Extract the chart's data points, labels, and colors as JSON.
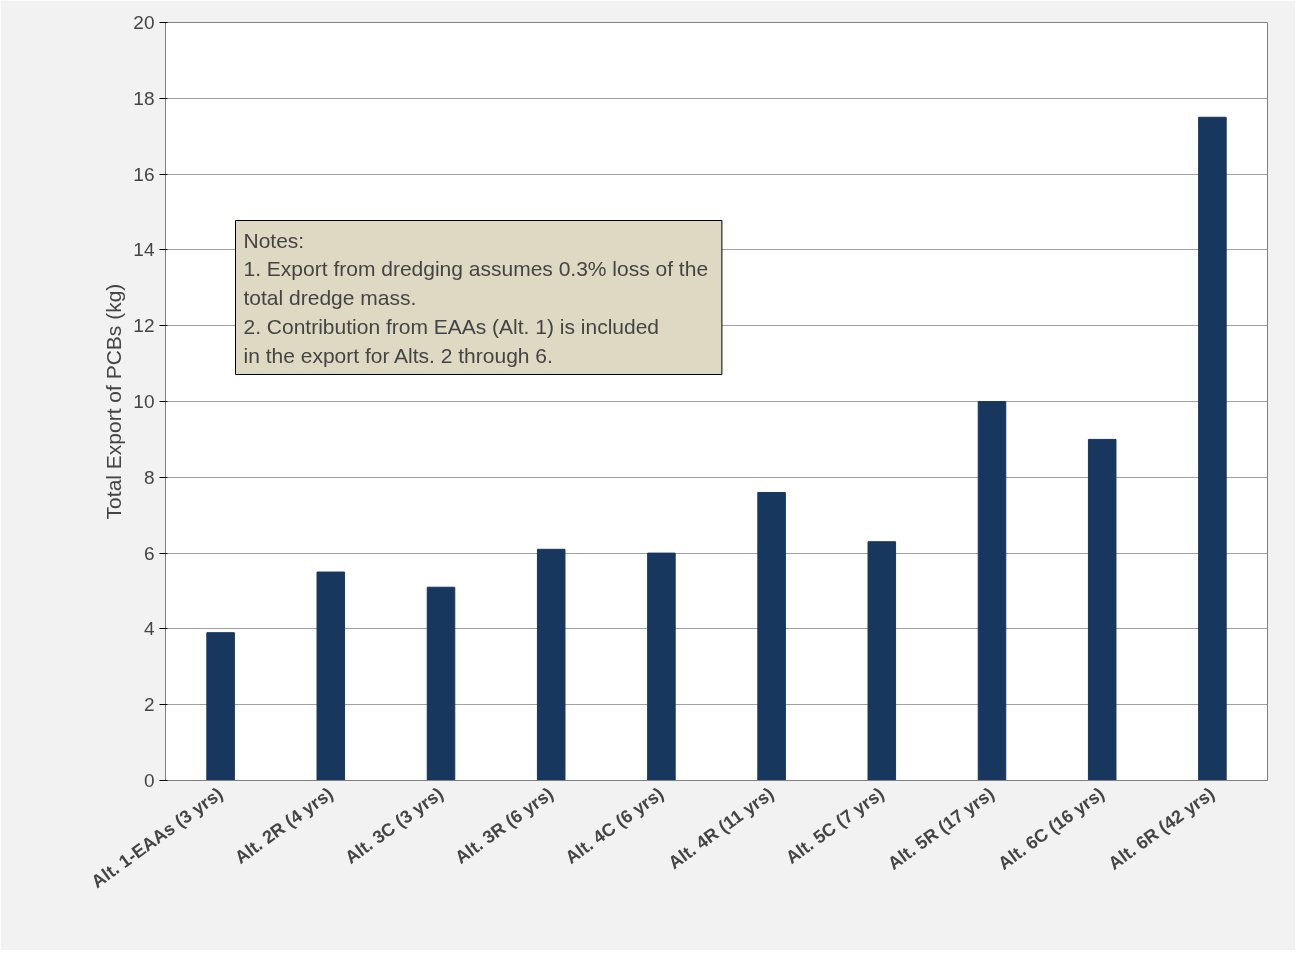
{
  "chart_data": {
    "type": "bar",
    "ylabel": "Total Export of PCBs (kg)",
    "categories": [
      "Alt. 1-EAAs (3 yrs)",
      "Alt. 2R (4 yrs)",
      "Alt. 3C (3 yrs)",
      "Alt. 3R (6 yrs)",
      "Alt. 4C (6 yrs)",
      "Alt. 4R (11 yrs)",
      "Alt. 5C (7 yrs)",
      "Alt. 5R (17 yrs)",
      "Alt. 6C (16 yrs)",
      "Alt. 6R (42 yrs)"
    ],
    "values": [
      3.9,
      5.5,
      5.1,
      6.1,
      6.0,
      7.6,
      6.3,
      10.0,
      9.0,
      17.5
    ],
    "color": "#17375e",
    "ylim": [
      0,
      20
    ],
    "yticks": [
      0,
      2,
      4,
      6,
      8,
      10,
      12,
      14,
      16,
      18,
      20
    ],
    "grid": "y",
    "annotations": [
      "Notes:",
      "1.  Export from dredging assumes 0.3% loss of the\n     total dredge mass.",
      "2.  Contribution from EAAs (Alt. 1) is included\n     in the export for Alts. 2 through 6."
    ]
  }
}
